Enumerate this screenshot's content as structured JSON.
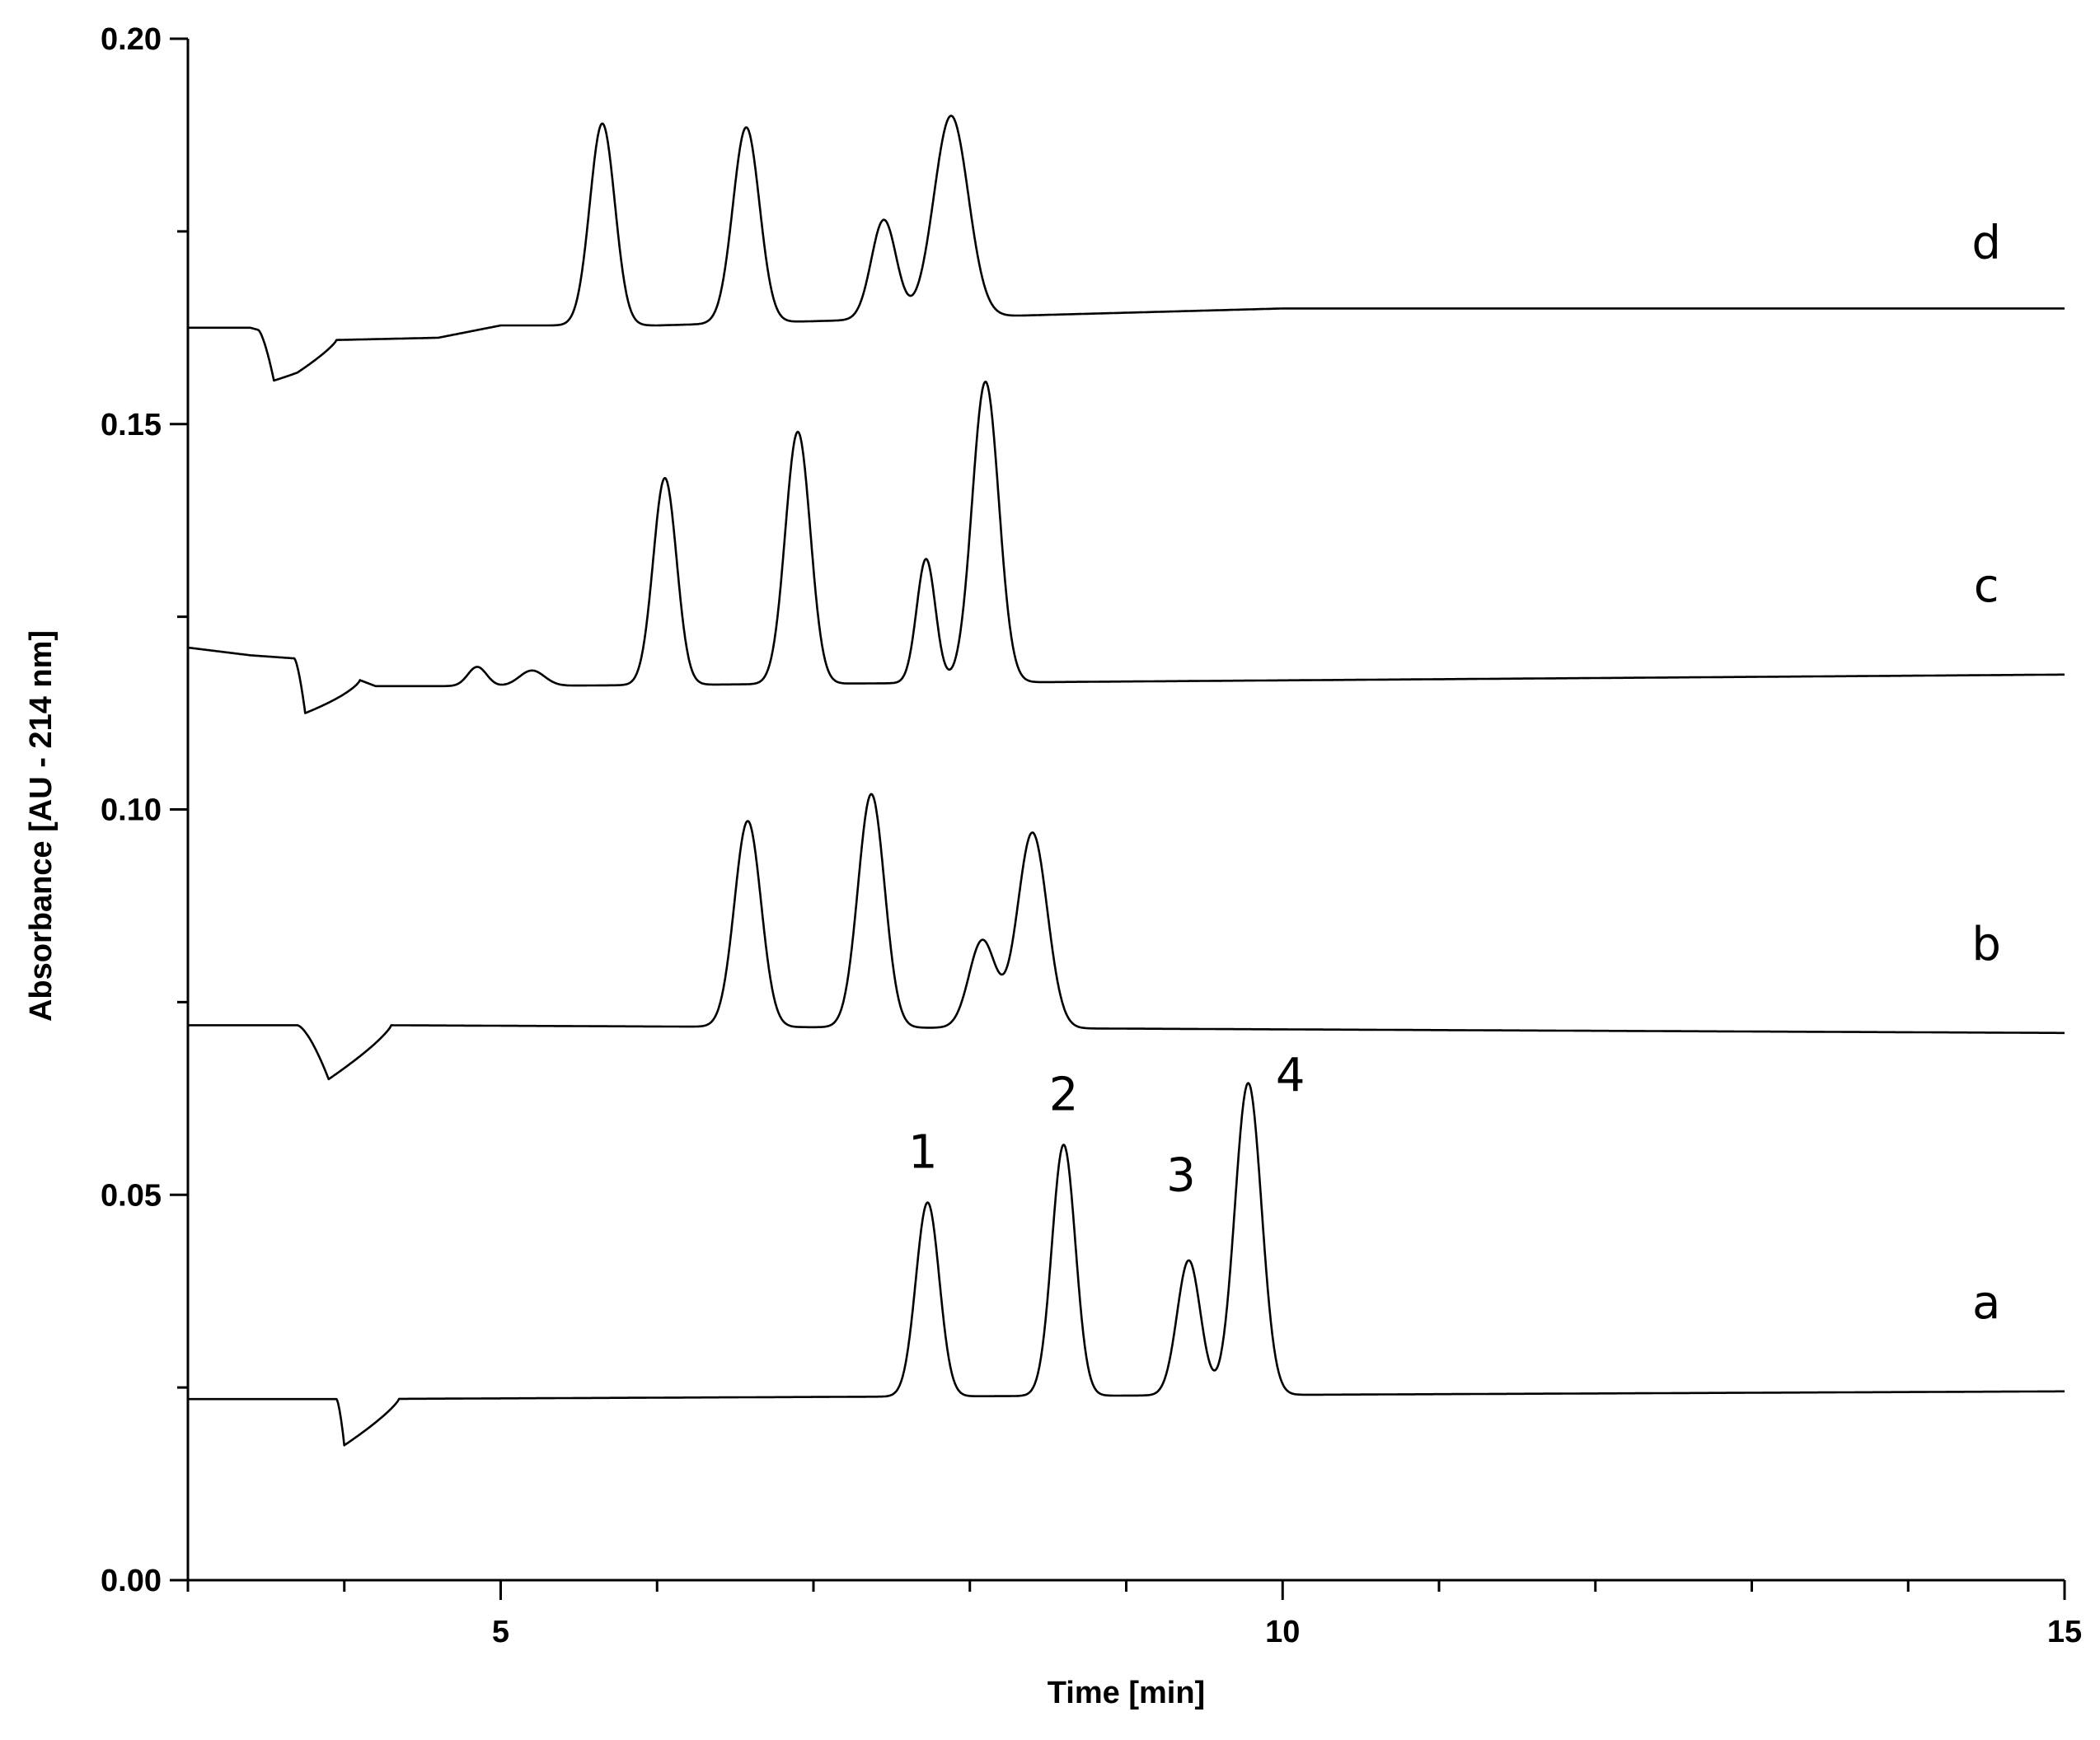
{
  "chart_data": {
    "type": "line",
    "title": "",
    "xlabel": "Time [min]",
    "ylabel": "Absorbance  [AU - 214 nm]",
    "xlim": [
      3,
      15
    ],
    "ylim": [
      0,
      0.2
    ],
    "x_major_ticks": [
      5,
      10,
      15
    ],
    "x_minor_step": 1,
    "y_major_ticks": [
      0.0,
      0.05,
      0.1,
      0.15,
      0.2
    ],
    "y_minor_step": 0.025,
    "x_tick_labels": [
      "5",
      "10",
      "15"
    ],
    "y_tick_labels": [
      "0.00",
      "0.05",
      "0.10",
      "0.15",
      "0.20"
    ],
    "grid": false,
    "legend": "none",
    "line_color": "#000000",
    "series": [
      {
        "name": "a",
        "label_at": {
          "x": 14.5,
          "y": 0.034
        },
        "baseline": [
          [
            3.0,
            0.0235
          ],
          [
            3.9,
            0.0235
          ],
          [
            4.05,
            0.0235
          ],
          [
            15.0,
            0.0245
          ]
        ],
        "dips": [
          {
            "t": 4.0,
            "depth": 0.006,
            "start": 3.95,
            "end": 4.35
          }
        ],
        "peaks": [
          {
            "t": 7.73,
            "height": 0.049,
            "sigma": 0.075
          },
          {
            "t": 8.6,
            "height": 0.0565,
            "sigma": 0.075
          },
          {
            "t": 9.4,
            "height": 0.0415,
            "sigma": 0.075
          },
          {
            "t": 9.78,
            "height": 0.0645,
            "sigma": 0.085
          }
        ]
      },
      {
        "name": "b",
        "label_at": {
          "x": 14.5,
          "y": 0.0805
        },
        "baseline": [
          [
            3.0,
            0.072
          ],
          [
            3.9,
            0.072
          ],
          [
            4.3,
            0.072
          ],
          [
            15.0,
            0.071
          ]
        ],
        "dips": [
          {
            "t": 3.9,
            "depth": 0.007,
            "start": 3.7,
            "end": 4.3
          }
        ],
        "peaks": [
          {
            "t": 6.58,
            "height": 0.0985,
            "sigma": 0.085
          },
          {
            "t": 7.37,
            "height": 0.102,
            "sigma": 0.085
          },
          {
            "t": 8.08,
            "height": 0.083,
            "sigma": 0.085
          },
          {
            "t": 8.4,
            "height": 0.097,
            "sigma": 0.095
          }
        ]
      },
      {
        "name": "c",
        "label_at": {
          "x": 14.5,
          "y": 0.127
        },
        "baseline": [
          [
            3.0,
            0.121
          ],
          [
            3.4,
            0.12
          ],
          [
            3.75,
            0.1195
          ],
          [
            4.2,
            0.116
          ],
          [
            5.0,
            0.116
          ],
          [
            15.0,
            0.1175
          ]
        ],
        "dips": [
          {
            "t": 3.75,
            "depth": 0.007,
            "start": 3.68,
            "end": 4.1
          }
        ],
        "bumps": [
          {
            "t": 4.85,
            "height": 0.0025,
            "sigma": 0.06
          },
          {
            "t": 5.2,
            "height": 0.002,
            "sigma": 0.08
          }
        ],
        "peaks": [
          {
            "t": 6.05,
            "height": 0.143,
            "sigma": 0.075
          },
          {
            "t": 6.9,
            "height": 0.149,
            "sigma": 0.08
          },
          {
            "t": 7.72,
            "height": 0.1325,
            "sigma": 0.06
          },
          {
            "t": 8.1,
            "height": 0.1555,
            "sigma": 0.085
          }
        ]
      },
      {
        "name": "d",
        "label_at": {
          "x": 14.5,
          "y": 0.1715
        },
        "baseline": [
          [
            3.0,
            0.1625
          ],
          [
            3.4,
            0.1625
          ],
          [
            3.7,
            0.1608
          ],
          [
            4.6,
            0.1612
          ],
          [
            5.0,
            0.1628
          ],
          [
            6.0,
            0.1628
          ],
          [
            10.0,
            0.165
          ],
          [
            15.0,
            0.165
          ]
        ],
        "dips": [
          {
            "t": 3.55,
            "depth": 0.006,
            "start": 3.45,
            "end": 3.95
          }
        ],
        "peaks": [
          {
            "t": 5.65,
            "height": 0.189,
            "sigma": 0.08
          },
          {
            "t": 6.57,
            "height": 0.1885,
            "sigma": 0.085
          },
          {
            "t": 7.45,
            "height": 0.1765,
            "sigma": 0.08
          },
          {
            "t": 7.88,
            "height": 0.19,
            "sigma": 0.11
          }
        ]
      }
    ],
    "annotations": [
      {
        "text": "1",
        "x": 7.7,
        "y": 0.0535
      },
      {
        "text": "2",
        "x": 8.6,
        "y": 0.061
      },
      {
        "text": "3",
        "x": 9.35,
        "y": 0.0505
      },
      {
        "text": "4",
        "x": 10.05,
        "y": 0.0635
      }
    ]
  }
}
